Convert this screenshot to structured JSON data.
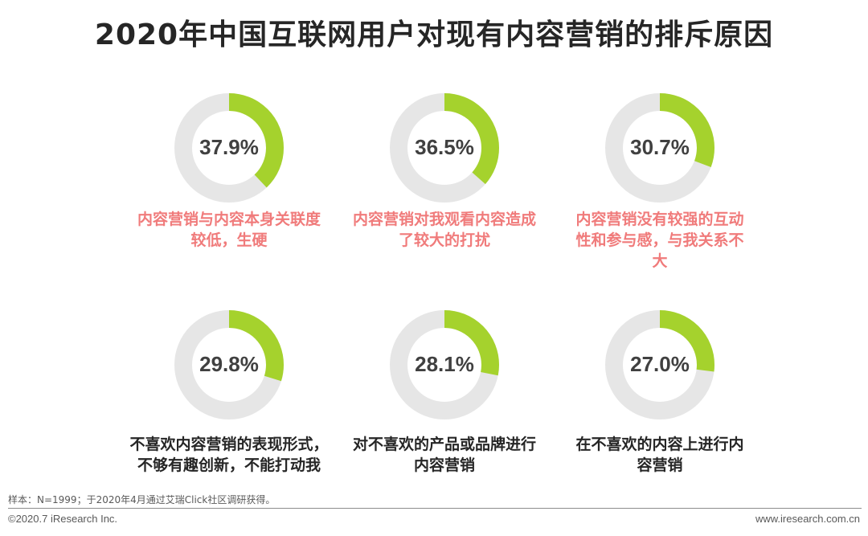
{
  "title": "2020年中国互联网用户对现有内容营销的排斥原因",
  "colors": {
    "ring_track": "#e6e6e6",
    "ring_fill": "#a5d22d",
    "label_red": "#f07b7b",
    "label_dark": "#262626",
    "pct_text": "#404040"
  },
  "chart_data": {
    "type": "donut",
    "unit": "%",
    "items": [
      {
        "value": 37.9,
        "display": "37.9%",
        "label": [
          "内容营销与内容本身关联度",
          "较低，生硬"
        ],
        "label_color": "red"
      },
      {
        "value": 36.5,
        "display": "36.5%",
        "label": [
          "内容营销对我观看内容造成",
          "了较大的打扰"
        ],
        "label_color": "red"
      },
      {
        "value": 30.7,
        "display": "30.7%",
        "label": [
          "内容营销没有较强的互动",
          "性和参与感，与我关系不",
          "大"
        ],
        "label_color": "red"
      },
      {
        "value": 29.8,
        "display": "29.8%",
        "label": [
          "不喜欢内容营销的表现形式，",
          "不够有趣创新，不能打动我"
        ],
        "label_color": "dark"
      },
      {
        "value": 28.1,
        "display": "28.1%",
        "label": [
          "对不喜欢的产品或品牌进行",
          "内容营销"
        ],
        "label_color": "dark"
      },
      {
        "value": 27.0,
        "display": "27.0%",
        "label": [
          "在不喜欢的内容上进行内",
          "容营销"
        ],
        "label_color": "dark"
      }
    ]
  },
  "footer": {
    "note": "样本：N=1999；于2020年4月通过艾瑞Click社区调研获得。",
    "copyright": "©2020.7 iResearch Inc.",
    "site": "www.iresearch.com.cn"
  }
}
